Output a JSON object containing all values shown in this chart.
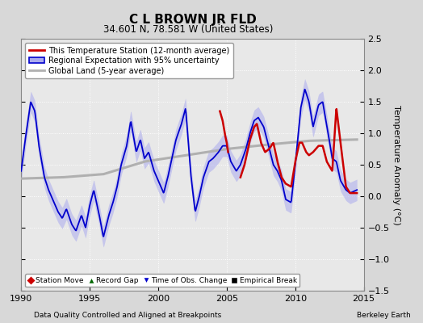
{
  "title": "C L BROWN JR FLD",
  "subtitle": "34.601 N, 78.581 W (United States)",
  "ylabel": "Temperature Anomaly (°C)",
  "xlabel_bottom_left": "Data Quality Controlled and Aligned at Breakpoints",
  "xlabel_bottom_right": "Berkeley Earth",
  "xlim": [
    1990,
    2015
  ],
  "ylim": [
    -1.5,
    2.5
  ],
  "yticks": [
    -1.5,
    -1.0,
    -0.5,
    0.0,
    0.5,
    1.0,
    1.5,
    2.0,
    2.5
  ],
  "xticks": [
    1990,
    1995,
    2000,
    2005,
    2010,
    2015
  ],
  "bg_color": "#d8d8d8",
  "plot_bg_color": "#e8e8e8",
  "grid_color": "#ffffff",
  "blue_line_color": "#0000cc",
  "blue_fill_color": "#aaaaee",
  "red_line_color": "#cc0000",
  "gray_line_color": "#b0b0b0",
  "legend1_entries": [
    {
      "label": "This Temperature Station (12-month average)",
      "color": "#cc0000",
      "lw": 2
    },
    {
      "label": "Regional Expectation with 95% uncertainty",
      "color": "#0000cc",
      "lw": 2
    },
    {
      "label": "Global Land (5-year average)",
      "color": "#b0b0b0",
      "lw": 2
    }
  ],
  "legend2_entries": [
    {
      "label": "Station Move",
      "marker": "D",
      "color": "#cc0000"
    },
    {
      "label": "Record Gap",
      "marker": "^",
      "color": "#006600"
    },
    {
      "label": "Time of Obs. Change",
      "marker": "v",
      "color": "#0000cc"
    },
    {
      "label": "Empirical Break",
      "marker": "s",
      "color": "#000000"
    }
  ],
  "blue_key_t": [
    1990,
    1990.3,
    1990.7,
    1991.0,
    1991.3,
    1991.7,
    1992.0,
    1992.4,
    1992.7,
    1993.0,
    1993.3,
    1993.7,
    1994.0,
    1994.4,
    1994.7,
    1995.0,
    1995.3,
    1995.7,
    1996.0,
    1996.4,
    1996.7,
    1997.0,
    1997.3,
    1997.7,
    1998.0,
    1998.4,
    1998.7,
    1999.0,
    1999.3,
    1999.7,
    2000.0,
    2000.4,
    2000.7,
    2001.0,
    2001.3,
    2001.7,
    2002.0,
    2002.4,
    2002.7,
    2003.0,
    2003.3,
    2003.7,
    2004.0,
    2004.4,
    2004.7,
    2005.0,
    2005.3,
    2005.7,
    2006.0,
    2006.4,
    2006.7,
    2007.0,
    2007.3,
    2007.7,
    2008.0,
    2008.4,
    2008.7,
    2009.0,
    2009.3,
    2009.7,
    2010.0,
    2010.4,
    2010.7,
    2011.0,
    2011.3,
    2011.7,
    2012.0,
    2012.4,
    2012.7,
    2013.0,
    2013.3,
    2013.7,
    2014.0,
    2014.5
  ],
  "blue_key_v": [
    0.4,
    0.9,
    1.5,
    1.35,
    0.8,
    0.3,
    0.1,
    -0.1,
    -0.25,
    -0.35,
    -0.2,
    -0.45,
    -0.55,
    -0.3,
    -0.5,
    -0.15,
    0.1,
    -0.3,
    -0.65,
    -0.3,
    -0.1,
    0.15,
    0.5,
    0.8,
    1.2,
    0.7,
    0.9,
    0.6,
    0.7,
    0.4,
    0.25,
    0.05,
    0.3,
    0.6,
    0.9,
    1.15,
    1.4,
    0.3,
    -0.25,
    0.0,
    0.3,
    0.55,
    0.6,
    0.7,
    0.8,
    0.8,
    0.55,
    0.4,
    0.5,
    0.75,
    1.0,
    1.2,
    1.25,
    1.1,
    0.85,
    0.5,
    0.4,
    0.25,
    -0.05,
    -0.1,
    0.5,
    1.4,
    1.7,
    1.5,
    1.1,
    1.45,
    1.5,
    1.0,
    0.6,
    0.55,
    0.25,
    0.1,
    0.05,
    0.1
  ],
  "red_key_t1": [
    2004.5,
    2004.7,
    2004.9,
    2005.0,
    2005.1
  ],
  "red_key_v1": [
    1.35,
    1.2,
    0.95,
    0.85,
    0.7
  ],
  "red_key_t2": [
    2006.0,
    2006.3,
    2006.7,
    2007.0,
    2007.2,
    2007.5,
    2007.8,
    2008.1,
    2008.4,
    2008.7,
    2009.0,
    2009.3,
    2009.7,
    2010.0,
    2010.3,
    2010.5,
    2010.8,
    2011.0,
    2011.3,
    2011.7,
    2012.0,
    2012.3,
    2012.7,
    2013.0,
    2013.3,
    2013.7,
    2014.0,
    2014.5
  ],
  "red_key_v2": [
    0.3,
    0.5,
    0.9,
    1.1,
    1.15,
    0.85,
    0.7,
    0.75,
    0.85,
    0.55,
    0.3,
    0.2,
    0.15,
    0.55,
    0.85,
    0.85,
    0.7,
    0.65,
    0.7,
    0.8,
    0.8,
    0.55,
    0.4,
    1.4,
    0.85,
    0.15,
    0.05,
    0.05
  ],
  "gray_key_t": [
    1990,
    1993,
    1996,
    1999,
    2002,
    2005,
    2008,
    2011,
    2014.5
  ],
  "gray_key_v": [
    0.28,
    0.3,
    0.35,
    0.55,
    0.65,
    0.75,
    0.82,
    0.88,
    0.9
  ]
}
